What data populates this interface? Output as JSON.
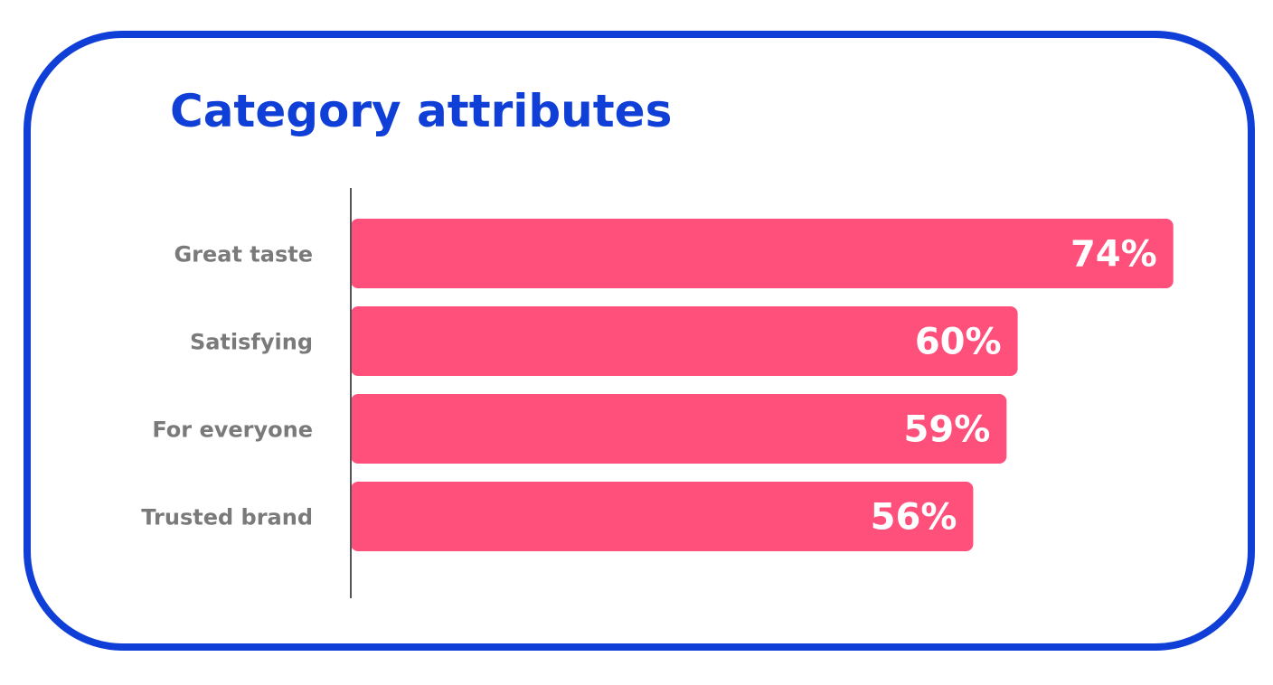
{
  "colors": {
    "accent": "#0f3fd6",
    "bar": "#ff4f7b",
    "category_text": "#7a7a7a",
    "value_text": "#ffffff",
    "axis": "#555555"
  },
  "chart_data": {
    "type": "bar",
    "orientation": "horizontal",
    "title": "Category attributes",
    "categories": [
      "Great taste",
      "Satisfying",
      "For everyone",
      "Trusted brand"
    ],
    "values": [
      74,
      60,
      59,
      56
    ],
    "value_labels": [
      "74%",
      "60%",
      "59%",
      "56%"
    ],
    "xlim": [
      0,
      75
    ],
    "grid": false,
    "legend": "none"
  }
}
